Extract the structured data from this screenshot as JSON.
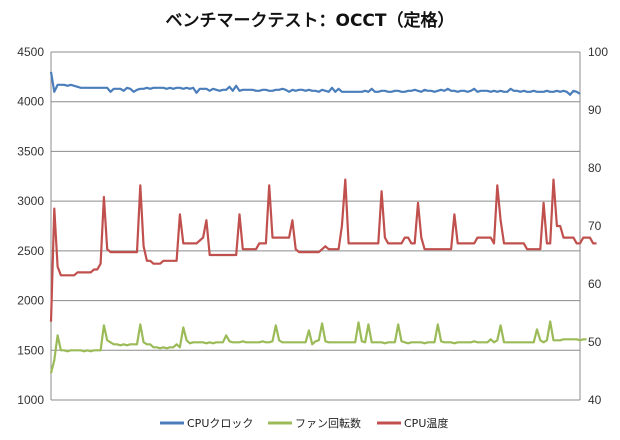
{
  "chart_data": {
    "type": "line",
    "title": "ベンチマークテスト：OCCT（定格）",
    "x_count": 161,
    "y_left": {
      "min": 1000,
      "max": 4500,
      "ticks": [
        1000,
        1500,
        2000,
        2500,
        3000,
        3500,
        4000,
        4500
      ]
    },
    "y_right": {
      "min": 40,
      "max": 100,
      "ticks": [
        40,
        50,
        60,
        70,
        80,
        90,
        100
      ]
    },
    "grid": true,
    "legend_position": "bottom",
    "series": [
      {
        "name": "CPUクロック",
        "axis": "left",
        "color": "#4a7ebb",
        "values": [
          4300,
          4100,
          4170,
          4170,
          4170,
          4160,
          4170,
          4160,
          4150,
          4140,
          4140,
          4140,
          4140,
          4140,
          4140,
          4140,
          4140,
          4140,
          4100,
          4130,
          4130,
          4130,
          4110,
          4140,
          4130,
          4100,
          4120,
          4130,
          4130,
          4140,
          4130,
          4140,
          4140,
          4140,
          4140,
          4130,
          4140,
          4130,
          4140,
          4140,
          4130,
          4140,
          4130,
          4140,
          4090,
          4130,
          4130,
          4130,
          4110,
          4130,
          4120,
          4110,
          4120,
          4120,
          4150,
          4110,
          4160,
          4110,
          4120,
          4120,
          4120,
          4120,
          4110,
          4110,
          4120,
          4120,
          4110,
          4110,
          4120,
          4120,
          4130,
          4120,
          4100,
          4120,
          4110,
          4120,
          4120,
          4110,
          4120,
          4110,
          4110,
          4100,
          4120,
          4110,
          4100,
          4140,
          4100,
          4130,
          4100,
          4100,
          4100,
          4100,
          4100,
          4100,
          4100,
          4110,
          4100,
          4130,
          4100,
          4100,
          4110,
          4110,
          4100,
          4100,
          4110,
          4110,
          4100,
          4100,
          4110,
          4110,
          4120,
          4110,
          4100,
          4120,
          4110,
          4110,
          4100,
          4110,
          4120,
          4110,
          4130,
          4110,
          4110,
          4100,
          4110,
          4110,
          4100,
          4110,
          4130,
          4100,
          4110,
          4110,
          4110,
          4100,
          4110,
          4100,
          4110,
          4100,
          4100,
          4130,
          4110,
          4110,
          4100,
          4110,
          4100,
          4100,
          4110,
          4100,
          4100,
          4100,
          4110,
          4100,
          4100,
          4110,
          4100,
          4110,
          4100,
          4070,
          4110,
          4100,
          4080
        ]
      },
      {
        "name": "ファン回転数",
        "axis": "left",
        "color": "#9bbb59",
        "values": [
          1270,
          1400,
          1650,
          1500,
          1500,
          1490,
          1500,
          1500,
          1500,
          1500,
          1490,
          1500,
          1490,
          1500,
          1500,
          1500,
          1750,
          1600,
          1580,
          1560,
          1560,
          1550,
          1560,
          1550,
          1560,
          1560,
          1560,
          1760,
          1580,
          1560,
          1560,
          1530,
          1530,
          1520,
          1530,
          1520,
          1530,
          1530,
          1560,
          1530,
          1730,
          1600,
          1570,
          1580,
          1580,
          1580,
          1580,
          1570,
          1580,
          1570,
          1580,
          1580,
          1580,
          1650,
          1590,
          1580,
          1580,
          1580,
          1590,
          1580,
          1580,
          1580,
          1580,
          1580,
          1590,
          1580,
          1580,
          1590,
          1750,
          1600,
          1580,
          1580,
          1580,
          1580,
          1580,
          1580,
          1580,
          1580,
          1700,
          1560,
          1590,
          1600,
          1770,
          1590,
          1580,
          1580,
          1580,
          1580,
          1580,
          1580,
          1580,
          1580,
          1580,
          1780,
          1590,
          1580,
          1760,
          1580,
          1580,
          1580,
          1580,
          1570,
          1580,
          1580,
          1580,
          1760,
          1590,
          1580,
          1570,
          1580,
          1580,
          1580,
          1580,
          1570,
          1580,
          1580,
          1580,
          1760,
          1590,
          1580,
          1580,
          1580,
          1570,
          1580,
          1580,
          1580,
          1580,
          1580,
          1590,
          1580,
          1580,
          1580,
          1580,
          1610,
          1580,
          1600,
          1750,
          1580,
          1580,
          1580,
          1580,
          1580,
          1580,
          1580,
          1580,
          1580,
          1580,
          1710,
          1600,
          1580,
          1600,
          1790,
          1600,
          1600,
          1600,
          1610,
          1610,
          1610,
          1610,
          1610,
          1600,
          1610,
          1610
        ]
      },
      {
        "name": "CPU温度",
        "axis": "right",
        "color": "#c0504d",
        "values": [
          53.5,
          73,
          63,
          61.5,
          61.5,
          61.5,
          61.5,
          61.5,
          62,
          62,
          62,
          62,
          62,
          62.5,
          62.5,
          63.5,
          75,
          66,
          65.5,
          65.5,
          65.5,
          65.5,
          65.5,
          65.5,
          65.5,
          65.5,
          65.5,
          77,
          66.5,
          64,
          64,
          63.5,
          63.5,
          63.5,
          64,
          64,
          64,
          64,
          64,
          72,
          67,
          67,
          67,
          67,
          67,
          67.5,
          68,
          71,
          65,
          65,
          65,
          65,
          65,
          65,
          65,
          65,
          65,
          72,
          66,
          66,
          66,
          66,
          66,
          67,
          67,
          67,
          77,
          68,
          68,
          68,
          68,
          68,
          68,
          71,
          66,
          65.5,
          65.5,
          65.5,
          65.5,
          65.5,
          65.5,
          65.5,
          66,
          66.5,
          66,
          66,
          66,
          66,
          70,
          78,
          67,
          67,
          67,
          67,
          67,
          67,
          67,
          67,
          67,
          67,
          76,
          68,
          67,
          67,
          67,
          67,
          67,
          68,
          68,
          67,
          67,
          74,
          68,
          66,
          66,
          66,
          66,
          66,
          66,
          66,
          66,
          66,
          72,
          67,
          67,
          67,
          67,
          67,
          67,
          68,
          68,
          68,
          68,
          68,
          67,
          77,
          71,
          67,
          67,
          67,
          67,
          67,
          67,
          67,
          66,
          66,
          66,
          66,
          66,
          74,
          67,
          67,
          78,
          70,
          70,
          68,
          68,
          68,
          68,
          67,
          67,
          68,
          68,
          68,
          67,
          67
        ]
      }
    ]
  }
}
